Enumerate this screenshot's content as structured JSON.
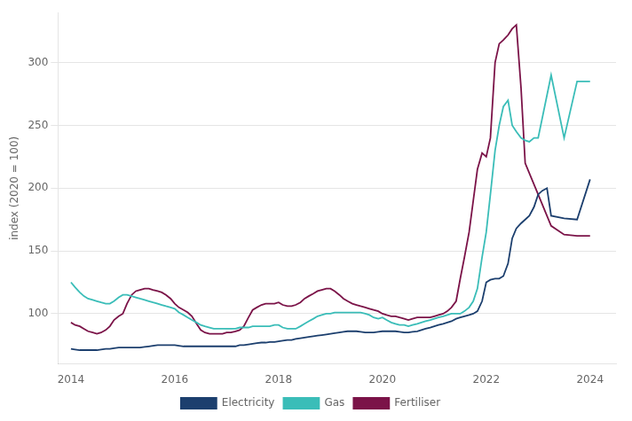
{
  "chart_data": {
    "type": "line",
    "ylabel": "index (2020 = 100)",
    "xlim": [
      2013.75,
      2024.5
    ],
    "xticks": [
      2014,
      2016,
      2018,
      2020,
      2022,
      2024
    ],
    "ylim": [
      60,
      340
    ],
    "yticks": [
      100,
      150,
      200,
      250,
      300
    ],
    "grid": "y",
    "legend": "bottom",
    "series": [
      {
        "name": "Electricity",
        "color": "#1c3f6e",
        "x": [
          2014.0,
          2014.08,
          2014.17,
          2014.25,
          2014.33,
          2014.42,
          2014.5,
          2014.58,
          2014.67,
          2014.75,
          2014.83,
          2014.92,
          2015.0,
          2015.08,
          2015.17,
          2015.25,
          2015.33,
          2015.42,
          2015.5,
          2015.58,
          2015.67,
          2015.75,
          2015.83,
          2015.92,
          2016.0,
          2016.08,
          2016.17,
          2016.25,
          2016.33,
          2016.42,
          2016.5,
          2016.58,
          2016.67,
          2016.75,
          2016.83,
          2016.92,
          2017.0,
          2017.08,
          2017.17,
          2017.25,
          2017.33,
          2017.42,
          2017.5,
          2017.58,
          2017.67,
          2017.75,
          2017.83,
          2017.92,
          2018.0,
          2018.08,
          2018.17,
          2018.25,
          2018.33,
          2018.42,
          2018.5,
          2018.58,
          2018.67,
          2018.75,
          2018.83,
          2018.92,
          2019.0,
          2019.08,
          2019.17,
          2019.25,
          2019.33,
          2019.42,
          2019.5,
          2019.58,
          2019.67,
          2019.75,
          2019.83,
          2019.92,
          2020.0,
          2020.08,
          2020.17,
          2020.25,
          2020.33,
          2020.42,
          2020.5,
          2020.58,
          2020.67,
          2020.75,
          2020.83,
          2020.92,
          2021.0,
          2021.08,
          2021.17,
          2021.25,
          2021.33,
          2021.42,
          2021.5,
          2021.58,
          2021.67,
          2021.75,
          2021.83,
          2021.92,
          2022.0,
          2022.08,
          2022.17,
          2022.25,
          2022.33,
          2022.42,
          2022.5,
          2022.58,
          2022.67,
          2022.75,
          2022.83,
          2022.92,
          2023.0,
          2023.08,
          2023.17,
          2023.25,
          2023.5,
          2023.75,
          2024.0
        ],
        "values": [
          72,
          71.5,
          71,
          71,
          71,
          71,
          71,
          71.5,
          72,
          72,
          72.5,
          73,
          73,
          73,
          73,
          73,
          73,
          73.5,
          74,
          74.5,
          75,
          75,
          75,
          75,
          75,
          74.5,
          74,
          74,
          74,
          74,
          74,
          74,
          74,
          74,
          74,
          74,
          74,
          74,
          74,
          75,
          75,
          75.5,
          76,
          76.5,
          77,
          77,
          77.5,
          77.5,
          78,
          78.5,
          79,
          79,
          80,
          80.5,
          81,
          81.5,
          82,
          82.5,
          83,
          83.5,
          84,
          84.5,
          85,
          85.5,
          86,
          86,
          86,
          85.5,
          85,
          85,
          85,
          85.5,
          86,
          86,
          86,
          86,
          85.5,
          85,
          85,
          85.5,
          86,
          87,
          88,
          89,
          90,
          91,
          92,
          93,
          94,
          96,
          97,
          98,
          99,
          100,
          102,
          110,
          125,
          127,
          128,
          128,
          130,
          140,
          160,
          168,
          172,
          175,
          178,
          185,
          195,
          198,
          200,
          178,
          176,
          175,
          207
        ]
      },
      {
        "name": "Gas",
        "color": "#3abdb8",
        "x": [
          2014.0,
          2014.08,
          2014.17,
          2014.25,
          2014.33,
          2014.42,
          2014.5,
          2014.58,
          2014.67,
          2014.75,
          2014.83,
          2014.92,
          2015.0,
          2015.08,
          2015.17,
          2015.25,
          2015.33,
          2015.42,
          2015.5,
          2015.58,
          2015.67,
          2015.75,
          2015.83,
          2015.92,
          2016.0,
          2016.08,
          2016.17,
          2016.25,
          2016.33,
          2016.42,
          2016.5,
          2016.58,
          2016.67,
          2016.75,
          2016.83,
          2016.92,
          2017.0,
          2017.08,
          2017.17,
          2017.25,
          2017.33,
          2017.42,
          2017.5,
          2017.58,
          2017.67,
          2017.75,
          2017.83,
          2017.92,
          2018.0,
          2018.08,
          2018.17,
          2018.25,
          2018.33,
          2018.42,
          2018.5,
          2018.58,
          2018.67,
          2018.75,
          2018.83,
          2018.92,
          2019.0,
          2019.08,
          2019.17,
          2019.25,
          2019.33,
          2019.42,
          2019.5,
          2019.58,
          2019.67,
          2019.75,
          2019.83,
          2019.92,
          2020.0,
          2020.08,
          2020.17,
          2020.25,
          2020.33,
          2020.42,
          2020.5,
          2020.58,
          2020.67,
          2020.75,
          2020.83,
          2020.92,
          2021.0,
          2021.08,
          2021.17,
          2021.25,
          2021.33,
          2021.42,
          2021.5,
          2021.58,
          2021.67,
          2021.75,
          2021.83,
          2021.92,
          2022.0,
          2022.08,
          2022.17,
          2022.25,
          2022.33,
          2022.42,
          2022.5,
          2022.58,
          2022.67,
          2022.75,
          2022.83,
          2022.92,
          2023.0,
          2023.25,
          2023.5,
          2023.75,
          2024.0
        ],
        "values": [
          125,
          121,
          117,
          114,
          112,
          111,
          110,
          109,
          108,
          108,
          110,
          113,
          115,
          115,
          114,
          113,
          112,
          111,
          110,
          109,
          108,
          107,
          106,
          105,
          104,
          101,
          99,
          97,
          95,
          93,
          91,
          90,
          89,
          88,
          88,
          88,
          88,
          88,
          88,
          89,
          89,
          89,
          90,
          90,
          90,
          90,
          90,
          91,
          91,
          89,
          88,
          88,
          88,
          90,
          92,
          94,
          96,
          98,
          99,
          100,
          100,
          101,
          101,
          101,
          101,
          101,
          101,
          101,
          100,
          99,
          97,
          96,
          97,
          95,
          93,
          92,
          91,
          91,
          90,
          91,
          92,
          93,
          94,
          95,
          96,
          97,
          98,
          99,
          100,
          100,
          100,
          102,
          105,
          110,
          120,
          145,
          165,
          195,
          230,
          250,
          265,
          270,
          250,
          245,
          240,
          238,
          237,
          240,
          240,
          290,
          240,
          285,
          285
        ]
      },
      {
        "name": "Fertiliser",
        "color": "#7b1348",
        "x": [
          2014.0,
          2014.08,
          2014.17,
          2014.25,
          2014.33,
          2014.42,
          2014.5,
          2014.58,
          2014.67,
          2014.75,
          2014.83,
          2014.92,
          2015.0,
          2015.08,
          2015.17,
          2015.25,
          2015.33,
          2015.42,
          2015.5,
          2015.58,
          2015.67,
          2015.75,
          2015.83,
          2015.92,
          2016.0,
          2016.08,
          2016.17,
          2016.25,
          2016.33,
          2016.42,
          2016.5,
          2016.58,
          2016.67,
          2016.75,
          2016.83,
          2016.92,
          2017.0,
          2017.08,
          2017.17,
          2017.25,
          2017.33,
          2017.42,
          2017.5,
          2017.58,
          2017.67,
          2017.75,
          2017.83,
          2017.92,
          2018.0,
          2018.08,
          2018.17,
          2018.25,
          2018.33,
          2018.42,
          2018.5,
          2018.58,
          2018.67,
          2018.75,
          2018.83,
          2018.92,
          2019.0,
          2019.08,
          2019.17,
          2019.25,
          2019.33,
          2019.42,
          2019.5,
          2019.58,
          2019.67,
          2019.75,
          2019.83,
          2019.92,
          2020.0,
          2020.08,
          2020.17,
          2020.25,
          2020.33,
          2020.42,
          2020.5,
          2020.58,
          2020.67,
          2020.75,
          2020.83,
          2020.92,
          2021.0,
          2021.08,
          2021.17,
          2021.25,
          2021.33,
          2021.42,
          2021.5,
          2021.58,
          2021.67,
          2021.75,
          2021.83,
          2021.92,
          2022.0,
          2022.08,
          2022.17,
          2022.25,
          2022.33,
          2022.42,
          2022.5,
          2022.58,
          2022.67,
          2022.75,
          2023.0,
          2023.25,
          2023.5,
          2023.75,
          2024.0
        ],
        "values": [
          93,
          91,
          90,
          88,
          86,
          85,
          84,
          85,
          87,
          90,
          95,
          98,
          100,
          108,
          115,
          118,
          119,
          120,
          120,
          119,
          118,
          117,
          115,
          112,
          108,
          105,
          103,
          101,
          98,
          92,
          87,
          85,
          84,
          84,
          84,
          84,
          85,
          85,
          86,
          87,
          90,
          97,
          103,
          105,
          107,
          108,
          108,
          108,
          109,
          107,
          106,
          106,
          107,
          109,
          112,
          114,
          116,
          118,
          119,
          120,
          120,
          118,
          115,
          112,
          110,
          108,
          107,
          106,
          105,
          104,
          103,
          102,
          100,
          99,
          98,
          98,
          97,
          96,
          95,
          96,
          97,
          97,
          97,
          97,
          98,
          99,
          100,
          102,
          105,
          110,
          128,
          145,
          165,
          190,
          215,
          228,
          225,
          240,
          300,
          315,
          318,
          322,
          327,
          330,
          280,
          220,
          195,
          170,
          163,
          162,
          162
        ]
      }
    ]
  }
}
